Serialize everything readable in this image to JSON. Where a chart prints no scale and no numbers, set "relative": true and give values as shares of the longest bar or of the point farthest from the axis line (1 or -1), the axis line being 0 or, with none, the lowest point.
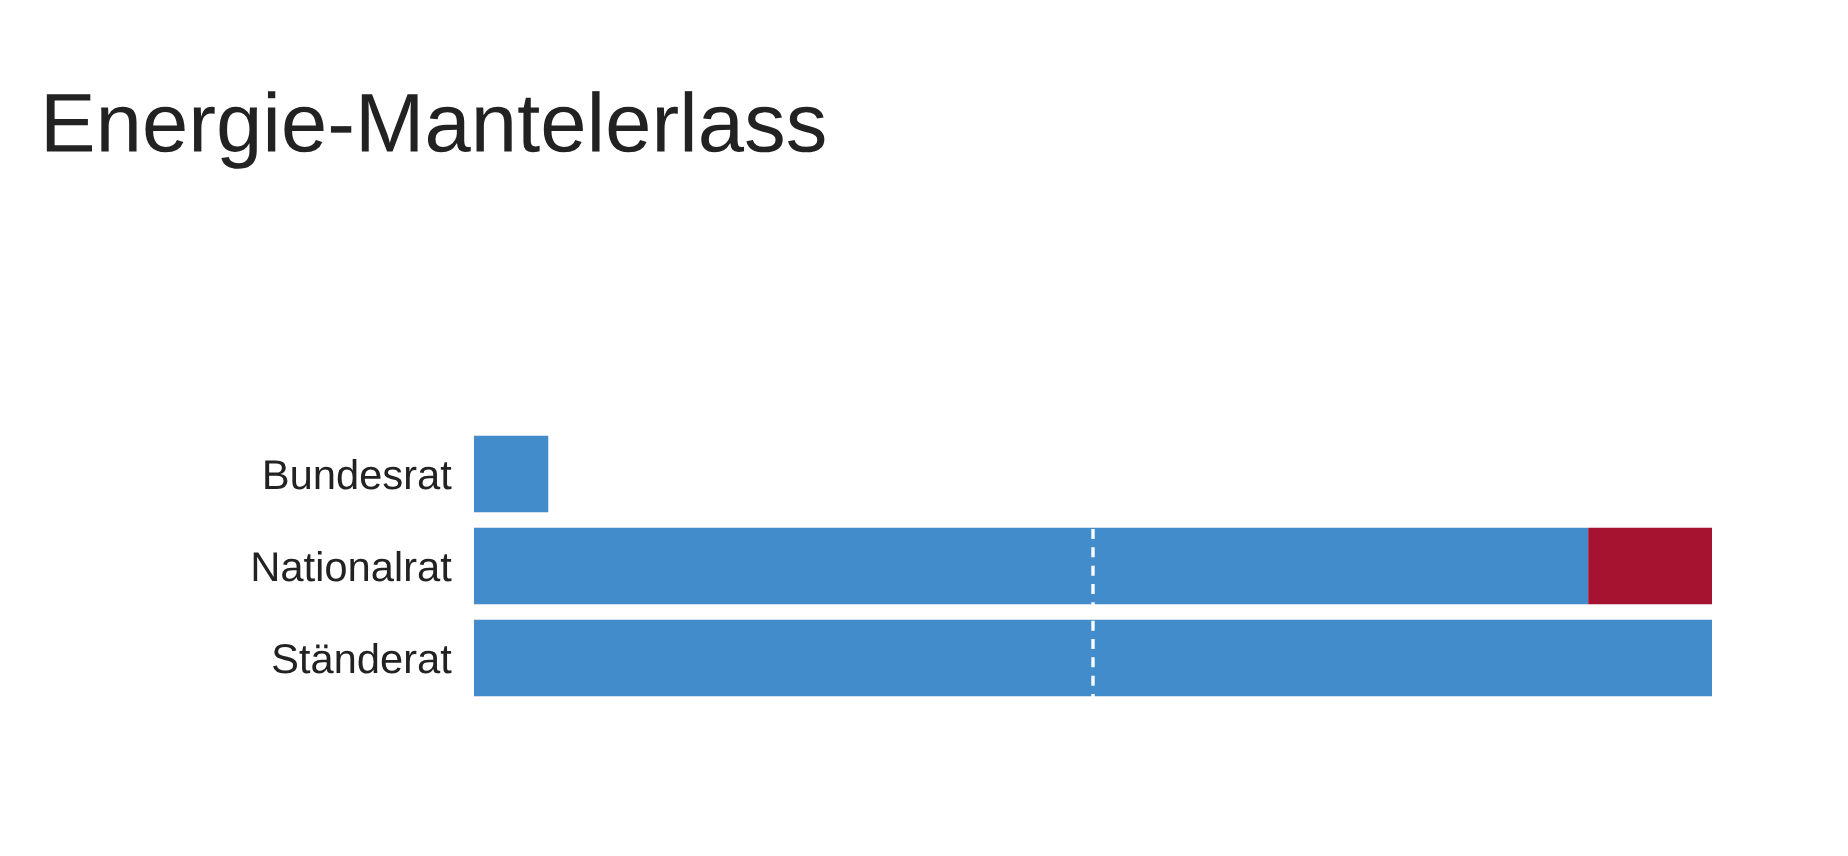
{
  "chart_data": {
    "type": "bar",
    "title": "Energie-Mantelerlass",
    "orientation": "horizontal",
    "stacked": true,
    "relative": true,
    "categories": [
      "Bundesrat",
      "Nationalrat",
      "Ständerat"
    ],
    "series": [
      {
        "color": "#438ccb",
        "values": [
          0.06,
          0.9,
          1.0
        ]
      },
      {
        "color": "#a51331",
        "values": [
          null,
          0.1,
          null
        ]
      }
    ],
    "ref_lines": [
      {
        "axis": "x",
        "value": 0.5,
        "color": "#ffffff",
        "line_style": "dashed"
      }
    ],
    "grid": false,
    "legend": false
  }
}
